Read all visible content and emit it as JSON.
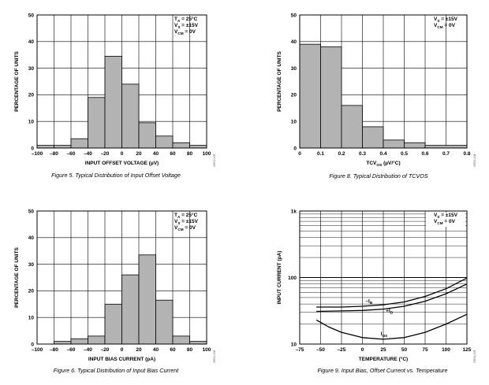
{
  "chart_data": [
    {
      "type": "bar",
      "id": "fig5",
      "caption": "Figure 5. Typical Distribution of Input Offset Voltage",
      "xlabel": "INPUT OFFSET VOLTAGE (µV)",
      "ylabel": "PERCENTAGE OF UNITS",
      "xlim": [
        -100,
        100
      ],
      "ylim": [
        0,
        50
      ],
      "xticks": [
        -100,
        -80,
        -60,
        -40,
        -20,
        0,
        20,
        40,
        60,
        80,
        100
      ],
      "yticks": [
        0,
        10,
        20,
        30,
        40,
        50
      ],
      "bin_edges": [
        -100,
        -80,
        -60,
        -40,
        -20,
        0,
        20,
        40,
        60,
        80,
        100
      ],
      "values": [
        1,
        1,
        3.5,
        19,
        34.5,
        24,
        9.5,
        4.5,
        2,
        1
      ],
      "conditions": [
        {
          "name": "T",
          "sub": "A",
          "rest": " = 25°C"
        },
        {
          "name": "V",
          "sub": "S",
          "rest": " = ±15V"
        },
        {
          "name": "V",
          "sub": "CM",
          "rest": " = 0V"
        }
      ],
      "side_code": "09700-005"
    },
    {
      "type": "bar",
      "id": "fig8",
      "caption": "Figure 8. Typical Distribution of TCVOS",
      "xlabel": "TCVOS (µV/°C)",
      "ylabel": "PERCENTAGE OF UNITS",
      "xlim": [
        0,
        0.8
      ],
      "ylim": [
        0,
        50
      ],
      "xticks": [
        0,
        0.1,
        0.2,
        0.3,
        0.4,
        0.5,
        0.6,
        0.7,
        0.8
      ],
      "xtick_labels": [
        "0",
        "0.1",
        "0.2",
        "0.3",
        "0.4",
        "0.5",
        "0.6",
        "0.7",
        "0.8"
      ],
      "yticks": [
        0,
        10,
        20,
        30,
        40,
        50
      ],
      "bin_edges": [
        0,
        0.1,
        0.2,
        0.3,
        0.4,
        0.5,
        0.6,
        0.8
      ],
      "values": [
        39,
        38,
        16,
        8,
        3,
        2,
        1
      ],
      "conditions": [
        {
          "name": "V",
          "sub": "S",
          "rest": " = ±15V"
        },
        {
          "name": "V",
          "sub": "CM",
          "rest": " = 0V"
        }
      ],
      "side_code": "09700-008"
    },
    {
      "type": "bar",
      "id": "fig6",
      "caption": "Figure 6. Typical Distribution of Input Bias Current",
      "xlabel": "INPUT BIAS CURRENT (pA)",
      "ylabel": "PERCENTAGE OF UNITS",
      "xlim": [
        -100,
        100
      ],
      "ylim": [
        0,
        50
      ],
      "xticks": [
        -100,
        -80,
        -60,
        -40,
        -20,
        0,
        20,
        40,
        60,
        80,
        100
      ],
      "yticks": [
        0,
        10,
        20,
        30,
        40,
        50
      ],
      "bin_edges": [
        -80,
        -60,
        -40,
        -20,
        0,
        20,
        40,
        60,
        80,
        100
      ],
      "values": [
        1,
        2,
        3,
        15,
        26,
        33.5,
        16.5,
        3,
        1
      ],
      "conditions": [
        {
          "name": "T",
          "sub": "A",
          "rest": " = 25°C"
        },
        {
          "name": "V",
          "sub": "S",
          "rest": " = ±15V"
        },
        {
          "name": "V",
          "sub": "CM",
          "rest": " = 0V"
        }
      ],
      "side_code": "09700-006"
    },
    {
      "type": "line",
      "id": "fig9",
      "caption": "Figure 9. Input Bias, Offset Current vs. Temperature",
      "xlabel": "TEMPERATURE (°C)",
      "ylabel": "INPUT CURRENT (pA)",
      "xscale": "linear",
      "yscale": "log",
      "xlim": [
        -75,
        125
      ],
      "ylim": [
        10,
        1000
      ],
      "xticks": [
        -75,
        -50,
        -25,
        0,
        25,
        50,
        75,
        100,
        125
      ],
      "yticks": [
        10,
        100,
        1000
      ],
      "ytick_labels": [
        "10",
        "100",
        "1k"
      ],
      "conditions": [
        {
          "name": "V",
          "sub": "S",
          "rest": " = ±15V"
        },
        {
          "name": "V",
          "sub": "CM",
          "rest": " = 0V"
        }
      ],
      "series": [
        {
          "name": "–IB",
          "label_main": "–I",
          "label_sub": "B",
          "x": [
            -55,
            -25,
            0,
            25,
            50,
            75,
            100,
            125
          ],
          "y": [
            36,
            36,
            37,
            39,
            43,
            52,
            68,
            98
          ]
        },
        {
          "name": "+IB",
          "label_main": "+I",
          "label_sub": "B",
          "x": [
            -55,
            -25,
            0,
            25,
            50,
            75,
            100,
            125
          ],
          "y": [
            31,
            31.5,
            32,
            33.5,
            37,
            44,
            57,
            80
          ]
        },
        {
          "name": "IOS",
          "label_main": "I",
          "label_sub": "OS",
          "x": [
            -55,
            -40,
            -25,
            0,
            25,
            50,
            75,
            100,
            125
          ],
          "y": [
            23,
            18,
            15,
            12.5,
            11.8,
            12.5,
            15,
            20,
            28
          ]
        }
      ],
      "side_code": "09700-009"
    }
  ]
}
